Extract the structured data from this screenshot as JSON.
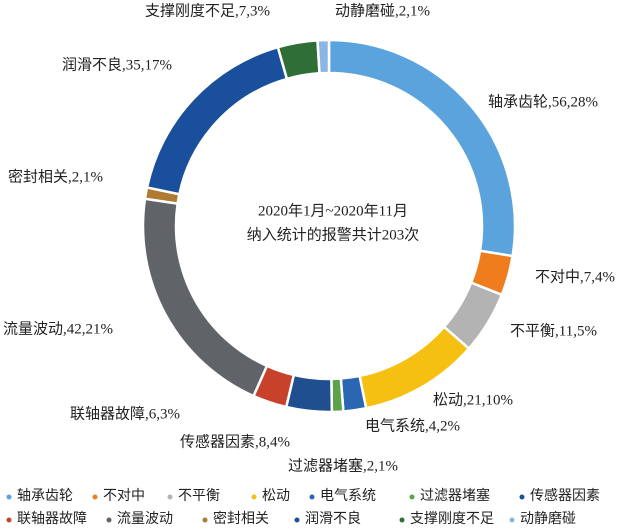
{
  "chart_data": {
    "type": "donut",
    "center_text": [
      "2020年1月~2020年11月",
      "纳入统计的报警共计203次"
    ],
    "categories": [
      "轴承齿轮",
      "不对中",
      "不平衡",
      "松动",
      "电气系统",
      "过滤器堵塞",
      "传感器因素",
      "联轴器故障",
      "流量波动",
      "密封相关",
      "润滑不良",
      "支撑刚度不足",
      "动静磨碰"
    ],
    "values": [
      56,
      7,
      11,
      21,
      4,
      2,
      8,
      6,
      42,
      2,
      35,
      7,
      2
    ],
    "value_labels": [
      "轴承齿轮,56,28%",
      "不对中,7,4%",
      "不平衡,11,5%",
      "松动,21,10%",
      "电气系统,4,2%",
      "过滤器堵塞,2,1%",
      "传感器因素,8,4%",
      "联轴器故障,6,3%",
      "流量波动,42,21%",
      "密封相关,2,1%",
      "润滑不良,35,17%",
      "支撑刚度不足,7,3%",
      "动静磨碰,2,1%"
    ],
    "colors": [
      "#5ba3dc",
      "#ef7d1e",
      "#b3b3b3",
      "#f5c012",
      "#2a66b2",
      "#5ca24a",
      "#1f4f8e",
      "#c8412b",
      "#606468",
      "#b07a32",
      "#1a4f9b",
      "#2f6f37",
      "#8cb6e2"
    ]
  }
}
